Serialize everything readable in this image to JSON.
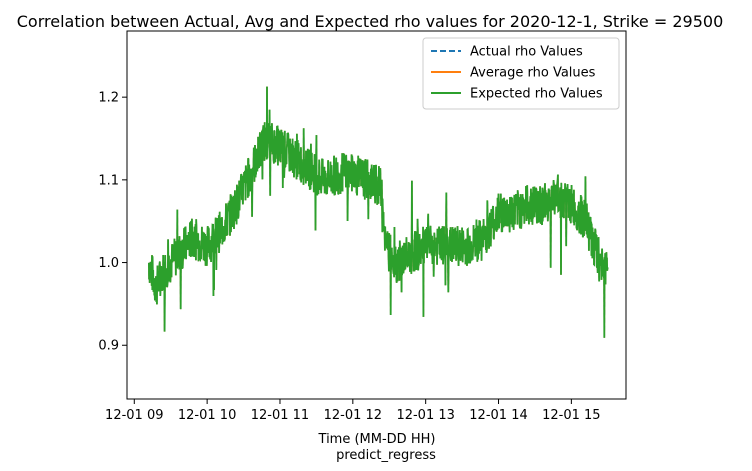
{
  "chart_data": {
    "type": "line",
    "title": "Correlation between Actual, Avg and Expected rho values for 2020-12-1, Strike = 29500",
    "xlabel": "Time (MM-DD HH)",
    "xlabel_sub": "predict_regress",
    "ylabel": "",
    "xlim": [
      8.9,
      15.75
    ],
    "ylim": [
      0.835,
      1.28
    ],
    "x_ticks": [
      {
        "value": 9,
        "label": "12-01 09"
      },
      {
        "value": 10,
        "label": "12-01 10"
      },
      {
        "value": 11,
        "label": "12-01 11"
      },
      {
        "value": 12,
        "label": "12-01 12"
      },
      {
        "value": 13,
        "label": "12-01 13"
      },
      {
        "value": 14,
        "label": "12-01 14"
      },
      {
        "value": 15,
        "label": "12-01 15"
      }
    ],
    "y_ticks": [
      {
        "value": 0.9,
        "label": "0.9"
      },
      {
        "value": 1.0,
        "label": "1.0"
      },
      {
        "value": 1.1,
        "label": "1.1"
      },
      {
        "value": 1.2,
        "label": "1.2"
      }
    ],
    "grid": false,
    "legend_position": "top-right",
    "legend": [
      {
        "name": "Actual rho Values",
        "color": "#1f77b4",
        "style": "dashed"
      },
      {
        "name": "Average rho Values",
        "color": "#ff7f0e",
        "style": "solid"
      },
      {
        "name": "Expected rho Values",
        "color": "#2ca02c",
        "style": "solid"
      }
    ],
    "series_trend": {
      "x": [
        9.2,
        9.3,
        9.4,
        9.6,
        9.8,
        10.0,
        10.2,
        10.4,
        10.6,
        10.8,
        11.0,
        11.3,
        11.6,
        11.9,
        12.2,
        12.4,
        12.45,
        12.6,
        12.8,
        13.0,
        13.2,
        13.4,
        13.6,
        13.8,
        14.0,
        14.2,
        14.4,
        14.6,
        14.8,
        15.0,
        15.2,
        15.35,
        15.5
      ],
      "y": [
        1.0,
        0.97,
        0.99,
        1.01,
        1.03,
        1.02,
        1.04,
        1.07,
        1.11,
        1.15,
        1.14,
        1.12,
        1.1,
        1.11,
        1.1,
        1.09,
        1.02,
        1.0,
        1.01,
        1.02,
        1.02,
        1.02,
        1.02,
        1.03,
        1.06,
        1.06,
        1.07,
        1.07,
        1.08,
        1.07,
        1.05,
        1.01,
        0.99
      ]
    },
    "colors": {
      "actual": "#1f77b4",
      "average": "#ff7f0e",
      "expected": "#2ca02c"
    }
  }
}
